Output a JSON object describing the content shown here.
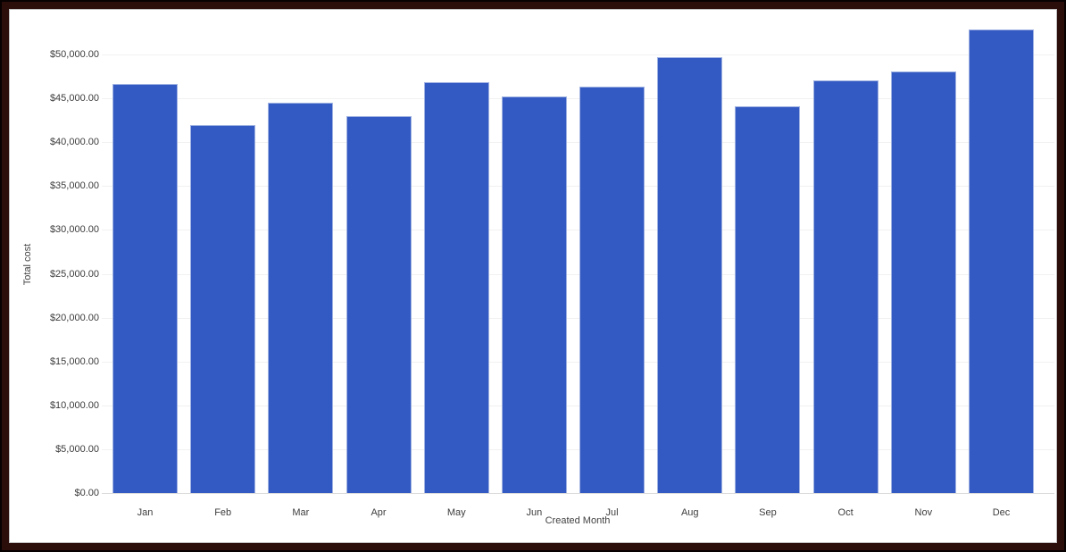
{
  "chart_data": {
    "type": "bar",
    "categories": [
      "Jan",
      "Feb",
      "Mar",
      "Apr",
      "May",
      "Jun",
      "Jul",
      "Aug",
      "Sep",
      "Oct",
      "Nov",
      "Dec"
    ],
    "values": [
      46600,
      42000,
      44500,
      43000,
      46800,
      45200,
      46300,
      49700,
      44100,
      47000,
      48100,
      52900
    ],
    "title": "",
    "xlabel": "Created Month",
    "ylabel": "Total cost",
    "ylim": [
      0,
      55000
    ],
    "ytick_step": 5000,
    "ytick_values": [
      0,
      5000,
      10000,
      15000,
      20000,
      25000,
      30000,
      35000,
      40000,
      45000,
      50000
    ],
    "ytick_labels": [
      "$0.00",
      "$5,000.00",
      "$10,000.00",
      "$15,000.00",
      "$20,000.00",
      "$25,000.00",
      "$30,000.00",
      "$35,000.00",
      "$40,000.00",
      "$45,000.00",
      "$50,000.00"
    ],
    "grid": true,
    "legend": false,
    "bar_color": "#3359c2",
    "bar_border_color": "#9fb2e2",
    "frame_color": "#2b0d0a"
  }
}
